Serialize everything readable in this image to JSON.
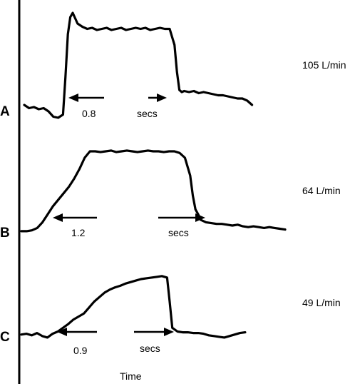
{
  "chart_data": {
    "type": "line",
    "xlabel": "Time",
    "panels": [
      {
        "id": "A",
        "flow_rate_label": "105 L/min",
        "duration_label": "0.8",
        "units_label": "secs",
        "trace_x": [
          0,
          2,
          4,
          6,
          8,
          10,
          12,
          14,
          16,
          17,
          18,
          19,
          20,
          22,
          24,
          26,
          28,
          30,
          32,
          34,
          36,
          38,
          40,
          42,
          44,
          46,
          48,
          50,
          52,
          54,
          56,
          58,
          60,
          62,
          63,
          64,
          65,
          66,
          68,
          70,
          72,
          74,
          76,
          78,
          80,
          82,
          84,
          86,
          88,
          90,
          92,
          94
        ],
        "trace_y": [
          0.14,
          0.11,
          0.12,
          0.1,
          0.11,
          0.08,
          0.03,
          0.02,
          0.05,
          0.4,
          0.8,
          0.96,
          1.0,
          0.9,
          0.87,
          0.85,
          0.86,
          0.84,
          0.85,
          0.86,
          0.84,
          0.85,
          0.86,
          0.84,
          0.85,
          0.86,
          0.85,
          0.86,
          0.84,
          0.85,
          0.86,
          0.85,
          0.85,
          0.7,
          0.45,
          0.28,
          0.26,
          0.27,
          0.26,
          0.27,
          0.25,
          0.26,
          0.25,
          0.24,
          0.23,
          0.23,
          0.22,
          0.21,
          0.2,
          0.2,
          0.18,
          0.14
        ]
      },
      {
        "id": "B",
        "flow_rate_label": "64 L/min",
        "duration_label": "1.2",
        "units_label": "secs",
        "trace_x": [
          0,
          2,
          4,
          6,
          8,
          10,
          12,
          14,
          16,
          18,
          20,
          22,
          24,
          26,
          28,
          30,
          32,
          34,
          36,
          38,
          40,
          42,
          44,
          46,
          48,
          50,
          52,
          54,
          56,
          58,
          60,
          62,
          64,
          65,
          66,
          67,
          68,
          70,
          72,
          74,
          76,
          78,
          80,
          82,
          84,
          86,
          88,
          90,
          92,
          94,
          96,
          98,
          100
        ],
        "trace_y": [
          0.01,
          0.01,
          0.02,
          0.05,
          0.12,
          0.22,
          0.32,
          0.4,
          0.48,
          0.56,
          0.66,
          0.78,
          0.92,
          1.0,
          1.0,
          0.99,
          1.0,
          1.01,
          0.99,
          1.0,
          1.01,
          1.0,
          0.99,
          1.0,
          1.01,
          1.0,
          1.0,
          0.99,
          1.0,
          1.0,
          0.98,
          0.92,
          0.7,
          0.45,
          0.28,
          0.22,
          0.15,
          0.12,
          0.11,
          0.1,
          0.1,
          0.09,
          0.08,
          0.09,
          0.07,
          0.06,
          0.07,
          0.06,
          0.05,
          0.06,
          0.05,
          0.04,
          0.03
        ]
      },
      {
        "id": "C",
        "flow_rate_label": "49 L/min",
        "duration_label": "0.9",
        "units_label": "secs",
        "trace_x": [
          0,
          2,
          4,
          6,
          8,
          10,
          12,
          14,
          16,
          18,
          20,
          22,
          24,
          26,
          28,
          30,
          32,
          34,
          36,
          38,
          40,
          42,
          44,
          46,
          48,
          50,
          52,
          54,
          56,
          57,
          58,
          60,
          62,
          64,
          66,
          68,
          70,
          72,
          74,
          76,
          78,
          80,
          82,
          84,
          86
        ],
        "trace_y": [
          0.06,
          0.07,
          0.05,
          0.08,
          0.04,
          0.02,
          0.07,
          0.1,
          0.15,
          0.2,
          0.26,
          0.3,
          0.34,
          0.42,
          0.5,
          0.56,
          0.62,
          0.66,
          0.69,
          0.71,
          0.74,
          0.76,
          0.78,
          0.8,
          0.81,
          0.82,
          0.83,
          0.84,
          0.82,
          0.5,
          0.15,
          0.1,
          0.09,
          0.09,
          0.08,
          0.08,
          0.07,
          0.05,
          0.04,
          0.03,
          0.02,
          0.04,
          0.06,
          0.08,
          0.09
        ]
      }
    ]
  }
}
